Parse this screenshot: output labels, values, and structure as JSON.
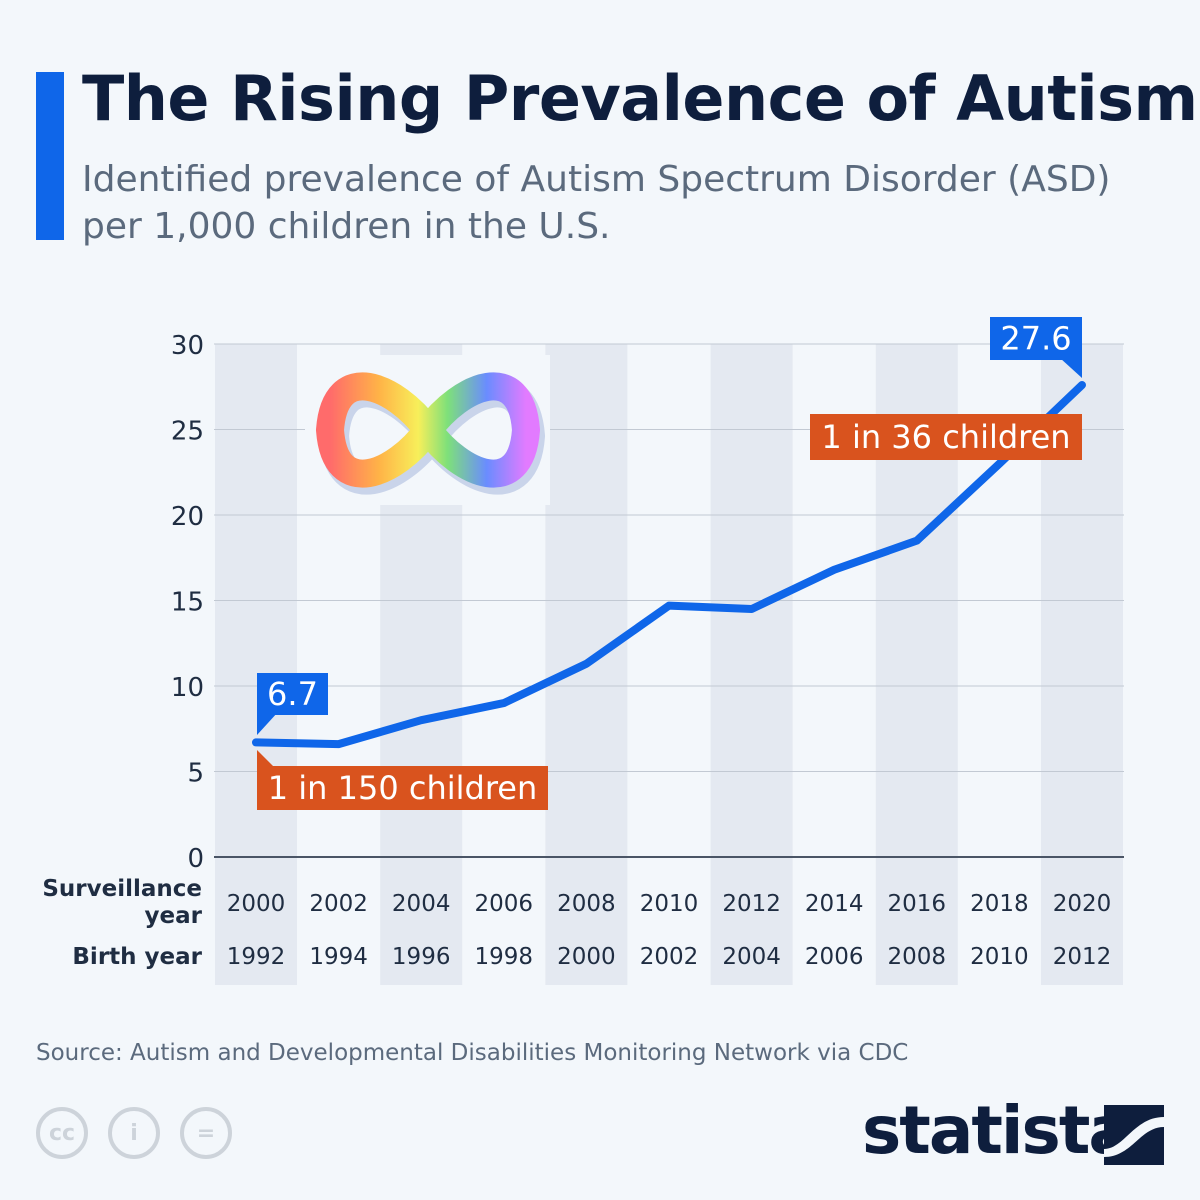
{
  "header": {
    "title": "The Rising Prevalence of Autism",
    "subtitle": "Identified prevalence of Autism Spectrum Disorder (ASD) per 1,000 children in the U.S."
  },
  "chart_data": {
    "type": "line",
    "title": "The Rising Prevalence of Autism",
    "ylim": [
      0,
      30
    ],
    "yticks": [
      0,
      5,
      10,
      15,
      20,
      25,
      30
    ],
    "grid": true,
    "x_row_labels": {
      "surveillance": "Surveillance year",
      "birth": "Birth year"
    },
    "categories": [
      "2000",
      "2002",
      "2004",
      "2006",
      "2008",
      "2010",
      "2012",
      "2014",
      "2016",
      "2018",
      "2020"
    ],
    "birth_years": [
      "1992",
      "1994",
      "1996",
      "1998",
      "2000",
      "2002",
      "2004",
      "2006",
      "2008",
      "2010",
      "2012"
    ],
    "series": [
      {
        "values": [
          6.7,
          6.6,
          8.0,
          9.0,
          11.3,
          14.7,
          14.5,
          16.8,
          18.5,
          23.0,
          27.6
        ],
        "color": "#0f66e9"
      }
    ],
    "annotations": {
      "first_value": "6.7",
      "first_note": "1 in 150 children",
      "last_value": "27.6",
      "last_note": "1 in 36 children"
    },
    "colors": {
      "value_label": "#0f66e9",
      "note_label": "#d9531e",
      "band": "#e4e9f1"
    }
  },
  "footer": {
    "source": "Source: Autism and Developmental Disabilities Monitoring Network via CDC",
    "brand": "statista",
    "license_icons": [
      "cc-icon",
      "attribution-icon",
      "no-derivatives-icon"
    ]
  }
}
